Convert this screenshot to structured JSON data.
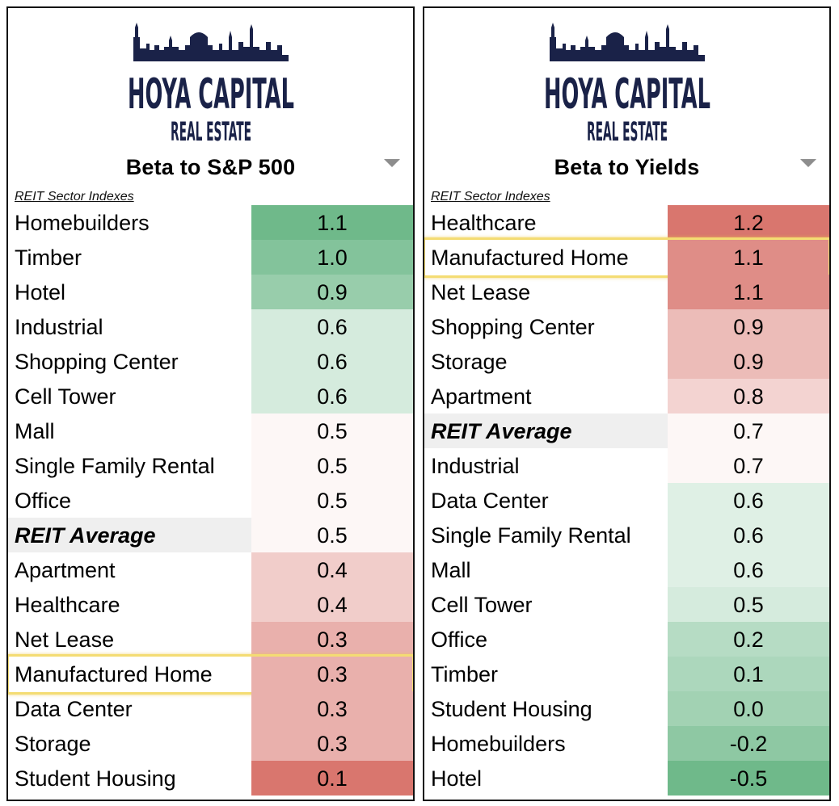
{
  "logo": {
    "line1": "HOYA CAPITAL",
    "line2": "REAL ESTATE",
    "brand_color": "#1a2248"
  },
  "chart_data": [
    {
      "type": "table",
      "title": "Beta to S&P 500",
      "subtitle": "REIT Sector Indexes",
      "categories": [
        "Homebuilders",
        "Timber",
        "Hotel",
        "Industrial",
        "Shopping Center",
        "Cell Tower",
        "Mall",
        "Single Family Rental",
        "Office",
        "REIT Average",
        "Apartment",
        "Healthcare",
        "Net Lease",
        "Manufactured Home",
        "Data Center",
        "Storage",
        "Student Housing"
      ],
      "values": [
        1.1,
        1.0,
        0.9,
        0.6,
        0.6,
        0.6,
        0.5,
        0.5,
        0.5,
        0.5,
        0.4,
        0.4,
        0.3,
        0.3,
        0.3,
        0.3,
        0.1
      ],
      "value_labels": [
        "1.1",
        "1.0",
        "0.9",
        "0.6",
        "0.6",
        "0.6",
        "0.5",
        "0.5",
        "0.5",
        "0.5",
        "0.4",
        "0.4",
        "0.3",
        "0.3",
        "0.3",
        "0.3",
        "0.1"
      ],
      "average_row": "REIT Average",
      "highlighted_row": "Manufactured Home",
      "color_scale": {
        "high_color": "#6fb98a",
        "high_color_tag": "green",
        "low_color": "#d9766e",
        "low_color_tag": "red"
      }
    },
    {
      "type": "table",
      "title": "Beta to Yields",
      "subtitle": "REIT Sector Indexes",
      "categories": [
        "Healthcare",
        "Manufactured Home",
        "Net Lease",
        "Shopping Center",
        "Storage",
        "Apartment",
        "REIT Average",
        "Industrial",
        "Data Center",
        "Single Family Rental",
        "Mall",
        "Cell Tower",
        "Office",
        "Timber",
        "Student Housing",
        "Homebuilders",
        "Hotel"
      ],
      "values": [
        1.2,
        1.1,
        1.1,
        0.9,
        0.9,
        0.8,
        0.7,
        0.7,
        0.6,
        0.6,
        0.6,
        0.5,
        0.2,
        0.1,
        0.0,
        -0.2,
        -0.5
      ],
      "value_labels": [
        "1.2",
        "1.1",
        "1.1",
        "0.9",
        "0.9",
        "0.8",
        "0.7",
        "0.7",
        "0.6",
        "0.6",
        "0.6",
        "0.5",
        "0.2",
        "0.1",
        "0.0",
        "-0.2",
        "-0.5"
      ],
      "average_row": "REIT Average",
      "highlighted_row": "Manufactured Home",
      "color_scale": {
        "high_color": "#d9766e",
        "high_color_tag": "red",
        "low_color": "#6fb98a",
        "low_color_tag": "green"
      }
    }
  ],
  "highlight_color": "#f4dc73"
}
